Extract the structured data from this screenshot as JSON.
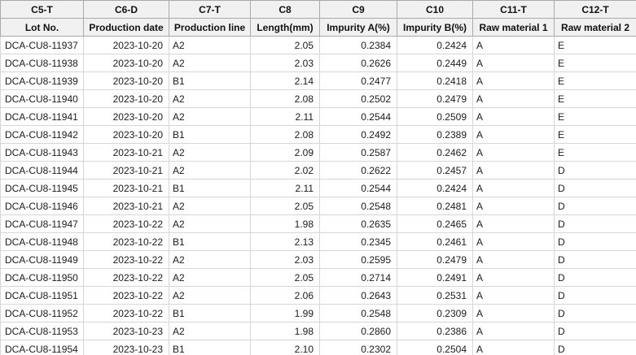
{
  "table": {
    "field_codes": [
      "C5-T",
      "C6-D",
      "C7-T",
      "C8",
      "C9",
      "C10",
      "C11-T",
      "C12-T"
    ],
    "column_labels": [
      "Lot No.",
      "Production date",
      "Production line",
      "Length(mm)",
      "Impurity A(%)",
      "Impurity B(%)",
      "Raw material 1",
      "Raw material 2"
    ],
    "rows": [
      [
        "DCA-CU8-11937",
        "2023-10-20",
        "A2",
        "2.05",
        "0.2384",
        "0.2424",
        "A",
        "E"
      ],
      [
        "DCA-CU8-11938",
        "2023-10-20",
        "A2",
        "2.03",
        "0.2626",
        "0.2449",
        "A",
        "E"
      ],
      [
        "DCA-CU8-11939",
        "2023-10-20",
        "B1",
        "2.14",
        "0.2477",
        "0.2418",
        "A",
        "E"
      ],
      [
        "DCA-CU8-11940",
        "2023-10-20",
        "A2",
        "2.08",
        "0.2502",
        "0.2479",
        "A",
        "E"
      ],
      [
        "DCA-CU8-11941",
        "2023-10-20",
        "A2",
        "2.11",
        "0.2544",
        "0.2509",
        "A",
        "E"
      ],
      [
        "DCA-CU8-11942",
        "2023-10-20",
        "B1",
        "2.08",
        "0.2492",
        "0.2389",
        "A",
        "E"
      ],
      [
        "DCA-CU8-11943",
        "2023-10-21",
        "A2",
        "2.09",
        "0.2587",
        "0.2462",
        "A",
        "E"
      ],
      [
        "DCA-CU8-11944",
        "2023-10-21",
        "A2",
        "2.02",
        "0.2622",
        "0.2457",
        "A",
        "D"
      ],
      [
        "DCA-CU8-11945",
        "2023-10-21",
        "B1",
        "2.11",
        "0.2544",
        "0.2424",
        "A",
        "D"
      ],
      [
        "DCA-CU8-11946",
        "2023-10-21",
        "A2",
        "2.05",
        "0.2548",
        "0.2481",
        "A",
        "D"
      ],
      [
        "DCA-CU8-11947",
        "2023-10-22",
        "A2",
        "1.98",
        "0.2635",
        "0.2465",
        "A",
        "D"
      ],
      [
        "DCA-CU8-11948",
        "2023-10-22",
        "B1",
        "2.13",
        "0.2345",
        "0.2461",
        "A",
        "D"
      ],
      [
        "DCA-CU8-11949",
        "2023-10-22",
        "A2",
        "2.03",
        "0.2595",
        "0.2479",
        "A",
        "D"
      ],
      [
        "DCA-CU8-11950",
        "2023-10-22",
        "A2",
        "2.05",
        "0.2714",
        "0.2491",
        "A",
        "D"
      ],
      [
        "DCA-CU8-11951",
        "2023-10-22",
        "A2",
        "2.06",
        "0.2643",
        "0.2531",
        "A",
        "D"
      ],
      [
        "DCA-CU8-11952",
        "2023-10-22",
        "B1",
        "1.99",
        "0.2548",
        "0.2309",
        "A",
        "D"
      ],
      [
        "DCA-CU8-11953",
        "2023-10-23",
        "A2",
        "1.98",
        "0.2860",
        "0.2386",
        "A",
        "D"
      ],
      [
        "DCA-CU8-11954",
        "2023-10-23",
        "B1",
        "2.10",
        "0.2302",
        "0.2504",
        "A",
        "D"
      ]
    ],
    "colors": {
      "header_background": "#f1f1f1",
      "header_border": "#a9a9a9",
      "cell_border": "#d6d6d6",
      "text": "#1b1b1b"
    }
  }
}
